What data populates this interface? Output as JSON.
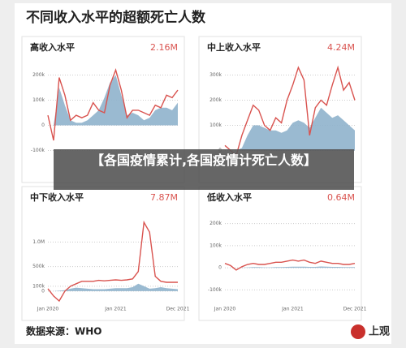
{
  "title": "不同收入水平的超额死亡人数",
  "caption": "【各国疫情累计,各国疫情计死亡人数】",
  "source": "数据来源：WHO",
  "logo": "上观",
  "chart_data": [
    {
      "type": "line",
      "title": "高收入水平",
      "total": "2.16M",
      "categories": [
        null,
        null,
        null,
        null,
        null,
        null,
        null,
        null,
        null,
        null,
        null,
        null,
        null,
        null,
        null,
        null,
        null,
        null,
        null,
        null,
        null,
        null,
        null,
        null
      ],
      "ylim": [
        -150000,
        250000
      ],
      "yticks": [
        {
          "value": 200000,
          "label": "200k"
        },
        {
          "value": 100000,
          "label": "100k"
        },
        0,
        {
          "value": -100000,
          "label": "-100k"
        }
      ],
      "series": [
        {
          "color": "#8fb3cc",
          "fill": true,
          "values": [
            0,
            0,
            150000,
            80000,
            20000,
            10000,
            10000,
            20000,
            40000,
            60000,
            110000,
            170000,
            200000,
            120000,
            40000,
            50000,
            40000,
            20000,
            30000,
            60000,
            70000,
            70000,
            60000,
            90000
          ]
        },
        {
          "color": "#d9534f",
          "fill": false,
          "values": [
            40000,
            -60000,
            190000,
            120000,
            20000,
            40000,
            30000,
            40000,
            90000,
            60000,
            50000,
            160000,
            220000,
            140000,
            30000,
            60000,
            60000,
            50000,
            40000,
            80000,
            70000,
            120000,
            110000,
            140000
          ]
        }
      ]
    },
    {
      "type": "line",
      "title": "中上收入水平",
      "total": "4.24M",
      "categories": [
        null,
        null,
        null,
        null,
        null,
        null,
        null,
        null,
        null,
        null,
        null,
        null,
        null,
        null,
        null,
        null,
        null,
        null,
        null,
        null,
        null,
        null,
        null,
        null
      ],
      "ylim": [
        -50000,
        350000
      ],
      "yticks": [
        {
          "value": 300000,
          "label": "300k"
        },
        {
          "value": 200000,
          "label": "200k"
        },
        {
          "value": 100000,
          "label": "100k"
        },
        0
      ],
      "series": [
        {
          "color": "#8fb3cc",
          "fill": true,
          "values": [
            0,
            0,
            0,
            10000,
            60000,
            100000,
            100000,
            90000,
            80000,
            80000,
            70000,
            80000,
            110000,
            120000,
            110000,
            90000,
            130000,
            170000,
            150000,
            130000,
            140000,
            120000,
            100000,
            80000
          ]
        },
        {
          "color": "#d9534f",
          "fill": false,
          "values": [
            20000,
            0,
            -20000,
            60000,
            120000,
            180000,
            160000,
            100000,
            80000,
            130000,
            110000,
            200000,
            260000,
            330000,
            280000,
            60000,
            170000,
            200000,
            180000,
            260000,
            330000,
            240000,
            270000,
            200000
          ]
        }
      ]
    },
    {
      "type": "line",
      "title": "中下收入水平",
      "total": "7.87M",
      "categories": [
        "Jan 2020",
        null,
        null,
        null,
        null,
        null,
        null,
        null,
        null,
        null,
        null,
        null,
        "Jan 2021",
        null,
        null,
        null,
        null,
        null,
        null,
        null,
        null,
        null,
        null,
        "Dec 2021"
      ],
      "ylim": [
        -200000,
        1600000
      ],
      "yticks": [
        {
          "value": 1000000,
          "label": "1.0M"
        },
        {
          "value": 500000,
          "label": "500k"
        },
        {
          "value": 100000,
          "label": "100k"
        },
        0
      ],
      "series": [
        {
          "color": "#8fb3cc",
          "fill": true,
          "values": [
            0,
            0,
            10000,
            20000,
            50000,
            70000,
            60000,
            50000,
            40000,
            40000,
            40000,
            50000,
            60000,
            60000,
            60000,
            80000,
            150000,
            100000,
            50000,
            60000,
            80000,
            60000,
            50000,
            40000
          ]
        },
        {
          "color": "#d9534f",
          "fill": false,
          "values": [
            50000,
            -100000,
            -200000,
            0,
            100000,
            150000,
            200000,
            200000,
            200000,
            220000,
            210000,
            220000,
            230000,
            220000,
            230000,
            250000,
            400000,
            1400000,
            1200000,
            300000,
            200000,
            180000,
            180000,
            180000
          ]
        }
      ]
    },
    {
      "type": "line",
      "title": "低收入水平",
      "total": "0.64M",
      "categories": [
        "Jan 2020",
        null,
        null,
        null,
        null,
        null,
        null,
        null,
        null,
        null,
        null,
        null,
        "Jan 2021",
        null,
        null,
        null,
        null,
        null,
        null,
        null,
        null,
        null,
        null,
        "Dec 2021"
      ],
      "ylim": [
        -150000,
        250000
      ],
      "yticks": [
        {
          "value": 200000,
          "label": "200k"
        },
        {
          "value": 100000,
          "label": "100k"
        },
        0,
        {
          "value": -100000,
          "label": "-100k"
        }
      ],
      "series": [
        {
          "color": "#8fb3cc",
          "fill": true,
          "values": [
            0,
            0,
            0,
            1000,
            2000,
            3000,
            3000,
            2000,
            2000,
            3000,
            3000,
            4000,
            5000,
            5000,
            5000,
            4000,
            4000,
            6000,
            5000,
            4000,
            4000,
            3000,
            3000,
            3000
          ]
        },
        {
          "color": "#d9534f",
          "fill": false,
          "values": [
            20000,
            10000,
            -10000,
            5000,
            15000,
            20000,
            15000,
            15000,
            20000,
            25000,
            25000,
            30000,
            35000,
            30000,
            35000,
            25000,
            20000,
            30000,
            25000,
            20000,
            20000,
            15000,
            15000,
            20000
          ]
        }
      ]
    }
  ]
}
